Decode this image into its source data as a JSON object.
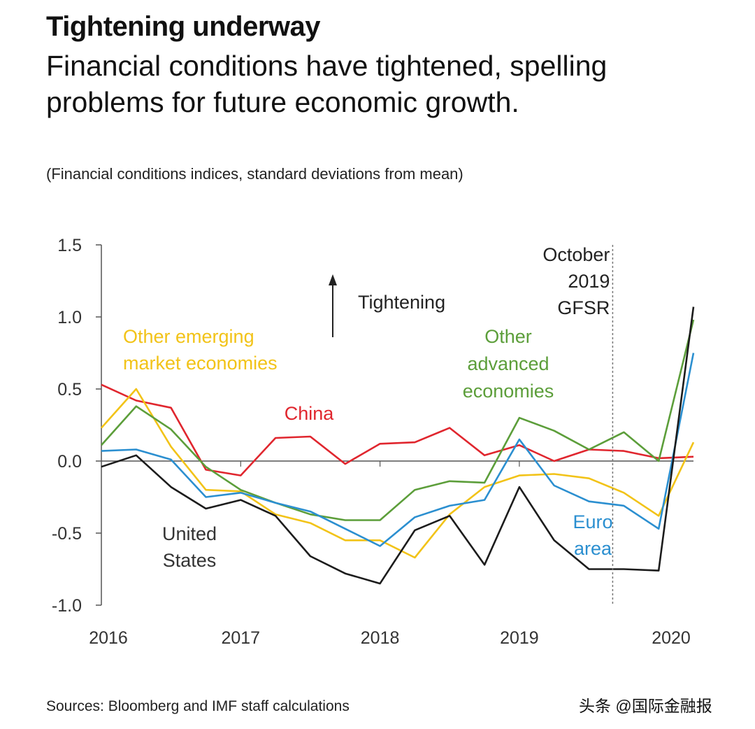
{
  "header": {
    "title": "Tightening underway",
    "subtitle": "Financial conditions have tightened, spelling problems for future economic growth."
  },
  "footer": {
    "source": "Sources: Bloomberg and IMF staff calculations",
    "watermark": "头条 @国际金融报"
  },
  "chart_data": {
    "type": "line",
    "title": "",
    "ylabel": "(Financial conditions indices, standard deviations from mean)",
    "xlabel": "",
    "ylim": [
      -1.0,
      1.5
    ],
    "xlim": [
      2016.0,
      2020.25
    ],
    "yticks": [
      "1.5",
      "1.0",
      "0.5",
      "0.0",
      "-0.5",
      "-1.0"
    ],
    "xticks": [
      "2016",
      "2017",
      "2018",
      "2019",
      "2020"
    ],
    "grid": false,
    "zero_line": true,
    "x": [
      2016.0,
      2016.25,
      2016.5,
      2016.75,
      2017.0,
      2017.25,
      2017.5,
      2017.75,
      2018.0,
      2018.25,
      2018.5,
      2018.75,
      2019.0,
      2019.25,
      2019.5,
      2019.75,
      2020.0,
      2020.25
    ],
    "series": [
      {
        "name": "China",
        "color": "#e0262e",
        "values": [
          0.53,
          0.42,
          0.37,
          -0.06,
          -0.1,
          0.16,
          0.17,
          -0.02,
          0.12,
          0.13,
          0.23,
          0.04,
          0.11,
          0.0,
          0.08,
          0.07,
          0.02,
          0.03
        ]
      },
      {
        "name": "Other emerging market economies",
        "color": "#f2c318",
        "values": [
          0.23,
          0.5,
          0.1,
          -0.2,
          -0.21,
          -0.37,
          -0.43,
          -0.55,
          -0.55,
          -0.67,
          -0.37,
          -0.18,
          -0.1,
          -0.09,
          -0.12,
          -0.22,
          -0.38,
          0.13
        ]
      },
      {
        "name": "Other advanced economies",
        "color": "#5c9e3a",
        "values": [
          0.11,
          0.38,
          0.22,
          -0.04,
          -0.2,
          -0.29,
          -0.37,
          -0.41,
          -0.41,
          -0.2,
          -0.14,
          -0.15,
          0.3,
          0.21,
          0.08,
          0.2,
          0.0,
          0.98
        ]
      },
      {
        "name": "Euro area",
        "color": "#2b8fd0",
        "values": [
          0.07,
          0.08,
          0.01,
          -0.25,
          -0.22,
          -0.29,
          -0.35,
          -0.47,
          -0.59,
          -0.39,
          -0.31,
          -0.27,
          0.15,
          -0.17,
          -0.28,
          -0.31,
          -0.47,
          0.75
        ]
      },
      {
        "name": "United States",
        "color": "#1c1c1c",
        "values": [
          -0.04,
          0.04,
          -0.18,
          -0.33,
          -0.27,
          -0.38,
          -0.66,
          -0.78,
          -0.85,
          -0.48,
          -0.38,
          -0.72,
          -0.18,
          -0.55,
          -0.75,
          -0.75,
          -0.76,
          1.07
        ]
      }
    ],
    "annotations": [
      {
        "text": "Tightening",
        "with_arrow": "up"
      },
      {
        "text": "October 2019 GFSR",
        "lines": [
          "October",
          "2019",
          "GFSR"
        ],
        "at_x": 2019.67
      },
      {
        "text": "Other emerging market economies",
        "lines": [
          "Other emerging",
          "market economies"
        ],
        "series": "Other emerging market economies"
      },
      {
        "text": "China",
        "lines": [
          "China"
        ],
        "series": "China"
      },
      {
        "text": "Other advanced economies",
        "lines": [
          "Other",
          "advanced",
          "economies"
        ],
        "series": "Other advanced economies"
      },
      {
        "text": "Euro area",
        "lines": [
          "Euro",
          "area"
        ],
        "series": "Euro area"
      },
      {
        "text": "United States",
        "lines": [
          "United",
          "States"
        ],
        "series": "United States"
      }
    ]
  }
}
